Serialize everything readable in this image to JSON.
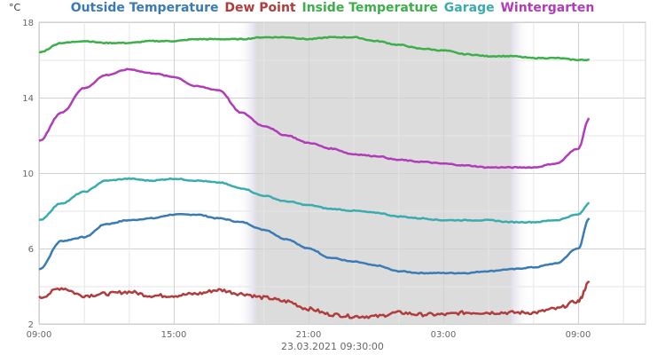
{
  "unit_label": "°C",
  "footer_timestamp": "23.03.2021 09:30:00",
  "chart_data": {
    "type": "line",
    "xlabel": "",
    "ylabel": "°C",
    "ylim": [
      2,
      18
    ],
    "xlim": [
      "22.03.2021 09:00",
      "23.03.2021 12:00"
    ],
    "x_ticks": [
      "09:00",
      "15:00",
      "21:00",
      "03:00",
      "09:00"
    ],
    "y_ticks": [
      2,
      6,
      10,
      14,
      18
    ],
    "grid": true,
    "legend_position": "top",
    "night_shading": {
      "start": "22.03.2021 18:40",
      "end": "23.03.2021 06:00",
      "color": "#dcdcdc"
    },
    "x": [
      "09:00",
      "10:00",
      "11:00",
      "12:00",
      "13:00",
      "14:00",
      "15:00",
      "16:00",
      "17:00",
      "18:00",
      "19:00",
      "20:00",
      "21:00",
      "22:00",
      "23:00",
      "00:00",
      "01:00",
      "02:00",
      "03:00",
      "04:00",
      "05:00",
      "06:00",
      "07:00",
      "08:00",
      "09:00",
      "09:30"
    ],
    "series": [
      {
        "name": "Outside Temperature",
        "color": "#3a7bb5",
        "values": [
          4.9,
          6.4,
          6.6,
          7.3,
          7.5,
          7.6,
          7.8,
          7.8,
          7.6,
          7.4,
          7.0,
          6.5,
          6.0,
          5.5,
          5.3,
          5.1,
          4.8,
          4.7,
          4.7,
          4.7,
          4.8,
          4.9,
          5.0,
          5.2,
          6.0,
          7.6
        ]
      },
      {
        "name": "Dew Point",
        "color": "#b03c3c",
        "values": [
          3.4,
          3.9,
          3.5,
          3.6,
          3.7,
          3.5,
          3.5,
          3.6,
          3.8,
          3.6,
          3.4,
          3.2,
          2.8,
          2.5,
          2.4,
          2.4,
          2.6,
          2.5,
          2.5,
          2.6,
          2.6,
          2.6,
          2.6,
          2.8,
          3.2,
          4.2
        ]
      },
      {
        "name": "Inside Temperature",
        "color": "#3cae4a",
        "values": [
          16.4,
          16.9,
          17.0,
          16.9,
          16.9,
          17.0,
          17.0,
          17.1,
          17.1,
          17.1,
          17.2,
          17.2,
          17.1,
          17.2,
          17.2,
          17.0,
          16.8,
          16.6,
          16.5,
          16.3,
          16.2,
          16.2,
          16.1,
          16.1,
          16.0,
          16.0
        ]
      },
      {
        "name": "Garage",
        "color": "#3aacae",
        "values": [
          7.5,
          8.4,
          9.0,
          9.6,
          9.7,
          9.6,
          9.7,
          9.6,
          9.5,
          9.2,
          8.8,
          8.5,
          8.3,
          8.1,
          8.0,
          7.9,
          7.7,
          7.6,
          7.5,
          7.5,
          7.5,
          7.4,
          7.4,
          7.5,
          7.8,
          8.4
        ]
      },
      {
        "name": "Wintergarten",
        "color": "#b03cb8",
        "values": [
          11.7,
          13.2,
          14.5,
          15.2,
          15.5,
          15.3,
          15.1,
          14.6,
          14.4,
          13.2,
          12.5,
          12.0,
          11.6,
          11.3,
          11.0,
          10.9,
          10.7,
          10.6,
          10.5,
          10.4,
          10.3,
          10.3,
          10.3,
          10.5,
          11.3,
          12.9
        ]
      }
    ]
  }
}
